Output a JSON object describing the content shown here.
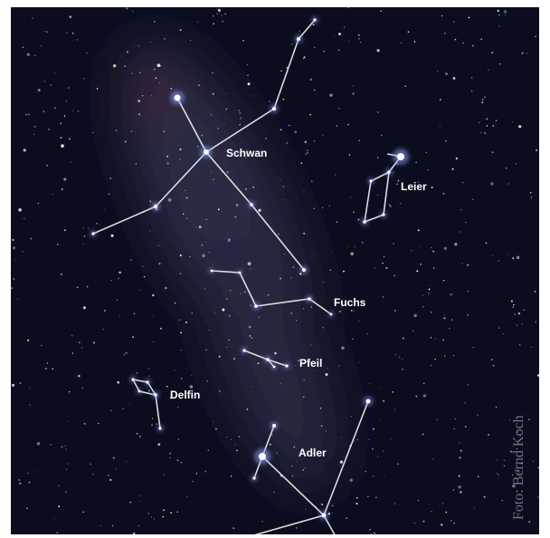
{
  "constellations": [
    {
      "label": "Schwan"
    },
    {
      "label": "Leier"
    },
    {
      "label": "Fuchs"
    },
    {
      "label": "Pfeil"
    },
    {
      "label": "Delfin"
    },
    {
      "label": "Adler"
    }
  ],
  "credit": "Foto: Bernd Koch"
}
